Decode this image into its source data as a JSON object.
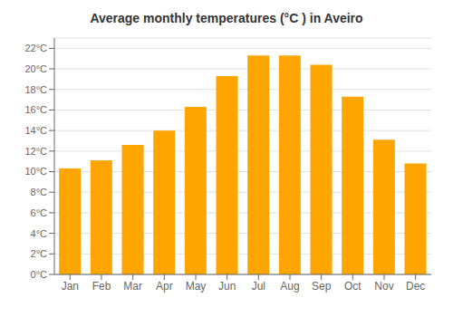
{
  "chart_data": {
    "type": "bar",
    "title": "Average monthly temperatures (°C ) in Aveiro",
    "categories": [
      "Jan",
      "Feb",
      "Mar",
      "Apr",
      "May",
      "Jun",
      "Jul",
      "Aug",
      "Sep",
      "Oct",
      "Nov",
      "Dec"
    ],
    "values": [
      10.3,
      11.1,
      12.6,
      14.0,
      16.3,
      19.3,
      21.3,
      21.3,
      20.4,
      17.3,
      13.1,
      10.8
    ],
    "color": "#FFA500",
    "ylim": [
      0,
      23
    ],
    "yticks": [
      {
        "value": 0,
        "label": "0°C"
      },
      {
        "value": 2,
        "label": "2°C"
      },
      {
        "value": 4,
        "label": "4°C"
      },
      {
        "value": 6,
        "label": "6°C"
      },
      {
        "value": 8,
        "label": "8°C"
      },
      {
        "value": 10,
        "label": "10°C"
      },
      {
        "value": 12,
        "label": "12°C"
      },
      {
        "value": 14,
        "label": "14°C"
      },
      {
        "value": 16,
        "label": "16°C"
      },
      {
        "value": 18,
        "label": "18°C"
      },
      {
        "value": 20,
        "label": "20°C"
      },
      {
        "value": 22,
        "label": "22°C"
      }
    ],
    "grid": true
  }
}
